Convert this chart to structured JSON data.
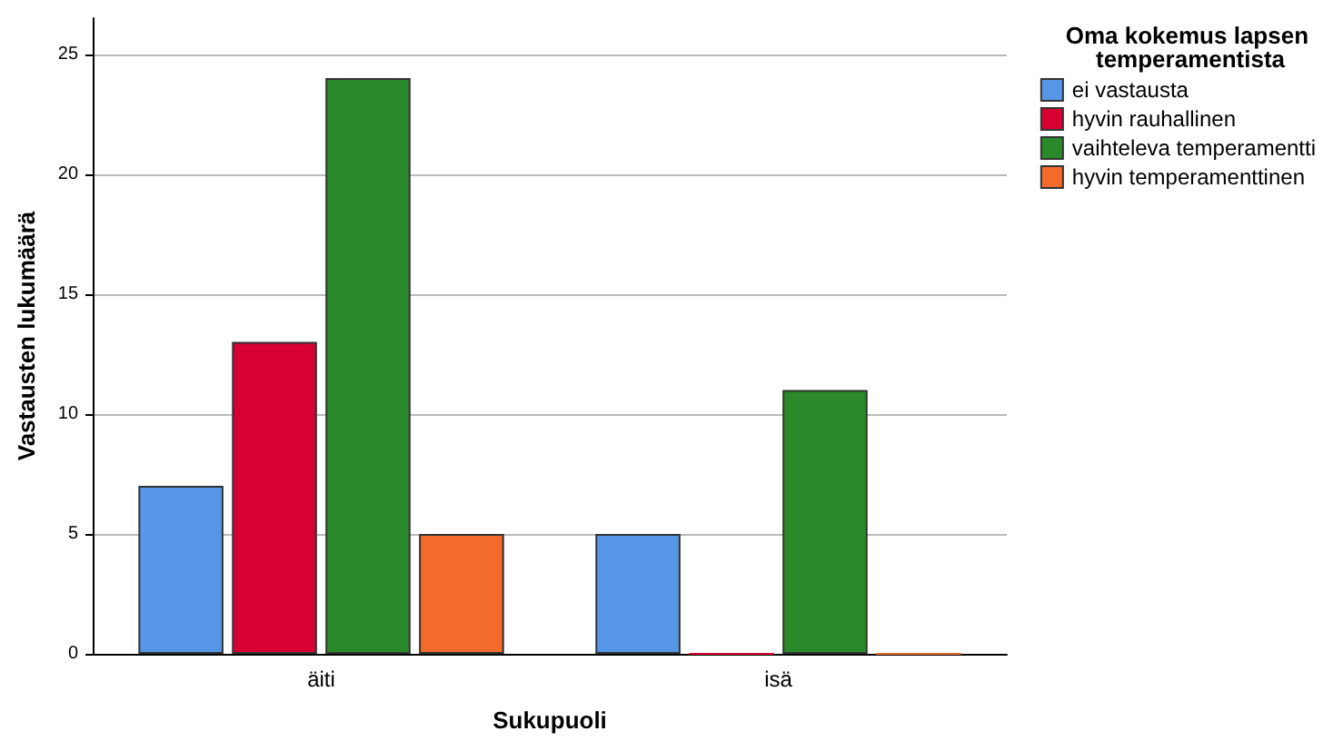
{
  "chart_data": {
    "type": "bar",
    "xlabel": "Sukupuoli",
    "ylabel": "Vastausten lukumäärä",
    "legend_title": "Oma kokemus lapsen temperamentista",
    "categories": [
      "äiti",
      "isä"
    ],
    "series": [
      {
        "name": "ei vastausta",
        "color": "#5596e6",
        "values": [
          7,
          5
        ]
      },
      {
        "name": "hyvin rauhallinen",
        "color": "#d60032",
        "values": [
          13,
          0
        ]
      },
      {
        "name": "vaihteleva temperamentti",
        "color": "#2a8a2a",
        "values": [
          24,
          11
        ]
      },
      {
        "name": "hyvin temperamenttinen",
        "color": "#f26b2d",
        "values": [
          5,
          0
        ]
      }
    ],
    "ylim": [
      0,
      26.5
    ],
    "yticks": [
      0,
      5,
      10,
      15,
      20,
      25
    ],
    "grid": "y",
    "legend": "top right"
  }
}
